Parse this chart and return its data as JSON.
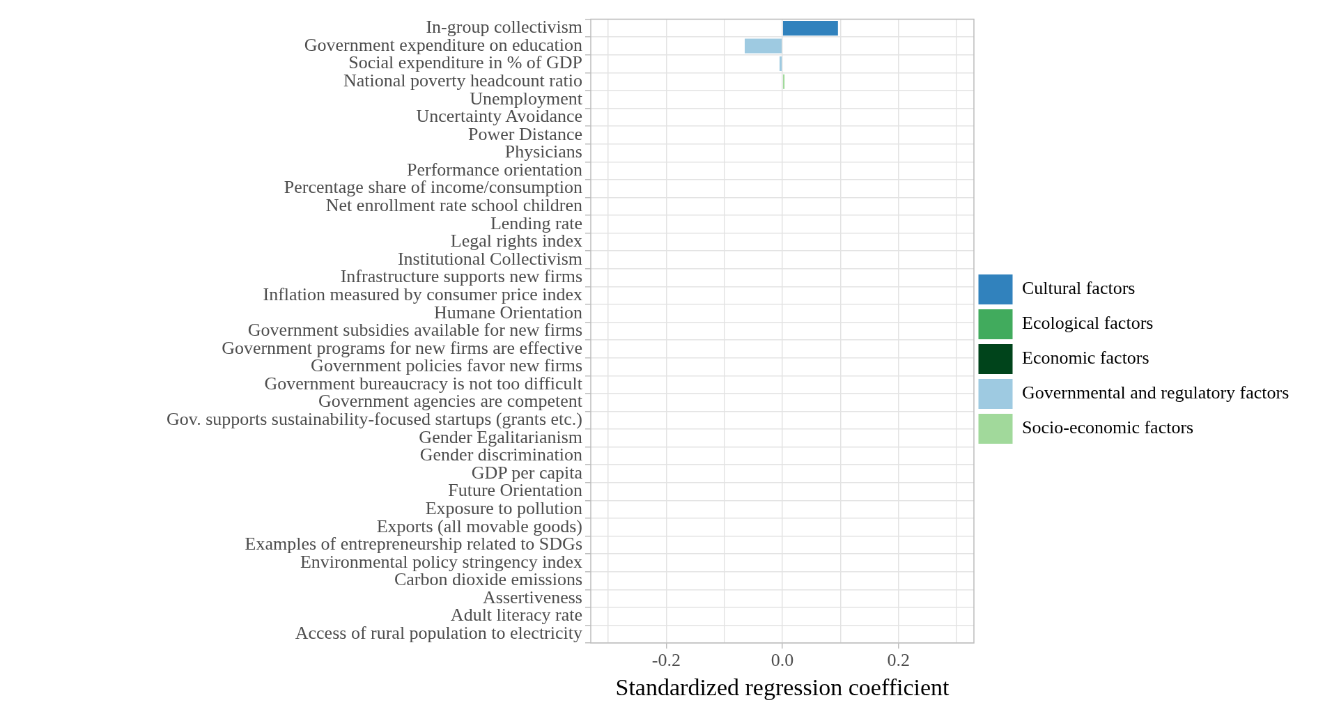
{
  "chart_data": {
    "type": "bar",
    "orientation": "horizontal",
    "stacked": true,
    "xlabel": "Standardized regression coefficient",
    "categories": [
      "In-group collectivism",
      "Government expenditure on education",
      "Social expenditure in % of GDP",
      "National poverty headcount ratio",
      "Unemployment",
      "Uncertainty Avoidance",
      "Power Distance",
      "Physicians",
      "Performance orientation",
      "Percentage share of income/consumption",
      "Net enrollment rate school children",
      "Lending rate",
      "Legal rights index",
      "Institutional Collectivism",
      "Infrastructure supports new firms",
      "Inflation measured by consumer price index",
      "Humane Orientation",
      "Government subsidies available for new firms",
      "Government programs for new firms are effective",
      "Government policies favor new firms",
      "Government bureaucracy is not too difficult",
      "Government agencies are competent",
      "Gov. supports sustainability-focused startups (grants etc.)",
      "Gender Egalitarianism",
      "Gender discrimination",
      "GDP per capita",
      "Future Orientation",
      "Exposure to pollution",
      "Exports (all movable goods)",
      "Examples of entrepreneurship related to SDGs",
      "Environmental policy stringency index",
      "Carbon dioxide emissions",
      "Assertiveness",
      "Adult literacy rate",
      "Access of rural population to electricity"
    ],
    "series": [
      {
        "name": "Cultural factors",
        "color": "#3182bd",
        "values": [
          0.097,
          null,
          null,
          null,
          null,
          null,
          null,
          null,
          null,
          null,
          null,
          null,
          null,
          null,
          null,
          null,
          null,
          null,
          null,
          null,
          null,
          null,
          null,
          null,
          null,
          null,
          null,
          null,
          null,
          null,
          null,
          null,
          null,
          null,
          null
        ]
      },
      {
        "name": "Ecological factors",
        "color": "#41ab5d",
        "values": [
          null,
          null,
          null,
          null,
          null,
          null,
          null,
          null,
          null,
          null,
          null,
          null,
          null,
          null,
          null,
          null,
          null,
          null,
          null,
          null,
          null,
          null,
          null,
          null,
          null,
          null,
          null,
          null,
          null,
          null,
          null,
          null,
          null,
          null,
          null
        ]
      },
      {
        "name": "Economic factors",
        "color": "#00441b",
        "values": [
          null,
          null,
          null,
          null,
          null,
          null,
          null,
          null,
          null,
          null,
          null,
          null,
          null,
          null,
          null,
          null,
          null,
          null,
          null,
          null,
          null,
          null,
          null,
          null,
          null,
          null,
          null,
          null,
          null,
          null,
          null,
          null,
          null,
          null,
          null
        ]
      },
      {
        "name": "Governmental and regulatory factors",
        "color": "#9ecae1",
        "values": [
          null,
          -0.066,
          -0.006,
          null,
          null,
          null,
          null,
          null,
          null,
          null,
          null,
          null,
          null,
          null,
          null,
          null,
          null,
          null,
          null,
          null,
          null,
          null,
          null,
          null,
          null,
          null,
          null,
          null,
          null,
          null,
          null,
          null,
          null,
          null,
          null
        ]
      },
      {
        "name": "Socio-economic factors",
        "color": "#a1d99b",
        "values": [
          null,
          null,
          null,
          0.005,
          null,
          null,
          null,
          null,
          null,
          null,
          null,
          null,
          null,
          null,
          null,
          null,
          null,
          null,
          null,
          null,
          null,
          null,
          null,
          null,
          null,
          null,
          null,
          null,
          null,
          null,
          null,
          null,
          null,
          null,
          null
        ]
      }
    ],
    "xlim": [
      -0.33,
      0.33
    ],
    "xticks": [
      {
        "value": -0.3,
        "label": null
      },
      {
        "value": -0.2,
        "label": "-0.2"
      },
      {
        "value": -0.1,
        "label": null
      },
      {
        "value": 0,
        "label": "0.0"
      },
      {
        "value": 0.1,
        "label": null
      },
      {
        "value": 0.2,
        "label": "0.2"
      },
      {
        "value": 0.3,
        "label": null
      }
    ],
    "grid": true,
    "legend": "right"
  }
}
